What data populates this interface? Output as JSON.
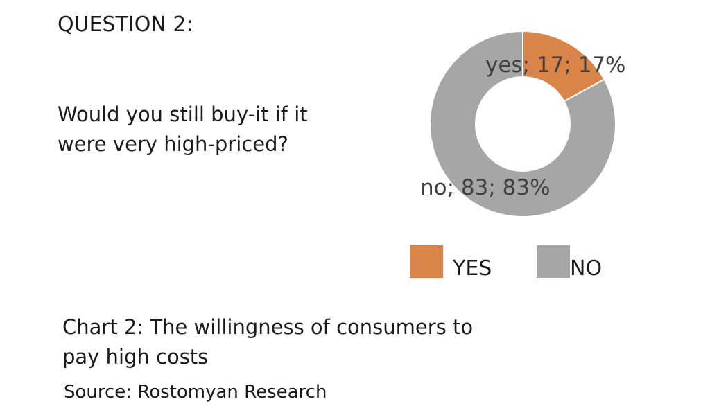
{
  "question": {
    "label": "QUESTION 2:",
    "text": "Would you still buy-it if it were very high-priced?"
  },
  "caption": "Chart 2: The willingness of consumers to pay high costs",
  "source": "Source: Rostomyan Research",
  "colors": {
    "yes": "#D9854A",
    "no": "#A6A6A6",
    "background": "#FFFFFF"
  },
  "chart_data": {
    "type": "pie",
    "variant": "doughnut",
    "categories": [
      "yes",
      "no"
    ],
    "values": [
      17,
      83
    ],
    "data_labels": [
      "yes; 17; 17%",
      "no; 83; 83%"
    ],
    "legend": {
      "placement": "bottom",
      "entries": [
        "YES",
        "NO"
      ]
    }
  }
}
